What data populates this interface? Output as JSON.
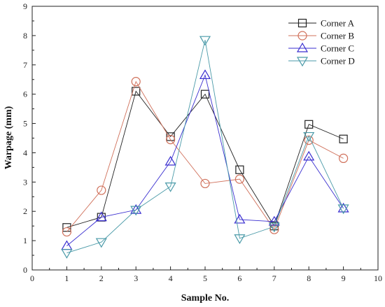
{
  "chart_data": {
    "type": "line",
    "xlabel": "Sample No.",
    "ylabel": "Warpage (mm)",
    "xlim": [
      0,
      10
    ],
    "ylim": [
      0,
      9
    ],
    "xticks": [
      "0",
      "1",
      "2",
      "3",
      "4",
      "5",
      "6",
      "7",
      "8",
      "9",
      "10"
    ],
    "yticks": [
      "0",
      "1",
      "2",
      "3",
      "4",
      "5",
      "6",
      "7",
      "8",
      "9"
    ],
    "x": [
      1,
      2,
      3,
      4,
      5,
      6,
      7,
      8,
      9
    ],
    "legend_position": "top-right",
    "grid": false,
    "series": [
      {
        "name": "Corner A",
        "marker": "square",
        "color": "#222222",
        "values": [
          1.45,
          1.8,
          6.1,
          4.55,
          6.0,
          3.42,
          1.5,
          4.97,
          4.47
        ]
      },
      {
        "name": "Corner B",
        "marker": "circle",
        "color": "#d0705a",
        "values": [
          1.3,
          2.72,
          6.43,
          4.45,
          2.95,
          3.1,
          1.38,
          4.43,
          3.81
        ]
      },
      {
        "name": "Corner C",
        "marker": "triangle-up",
        "color": "#3a2fd0",
        "values": [
          0.82,
          1.8,
          2.05,
          3.7,
          6.65,
          1.72,
          1.65,
          3.87,
          2.1
        ]
      },
      {
        "name": "Corner D",
        "marker": "triangle-down",
        "color": "#4a9aa8",
        "values": [
          0.58,
          0.95,
          2.05,
          2.85,
          7.85,
          1.08,
          1.48,
          4.57,
          2.1
        ]
      }
    ]
  }
}
